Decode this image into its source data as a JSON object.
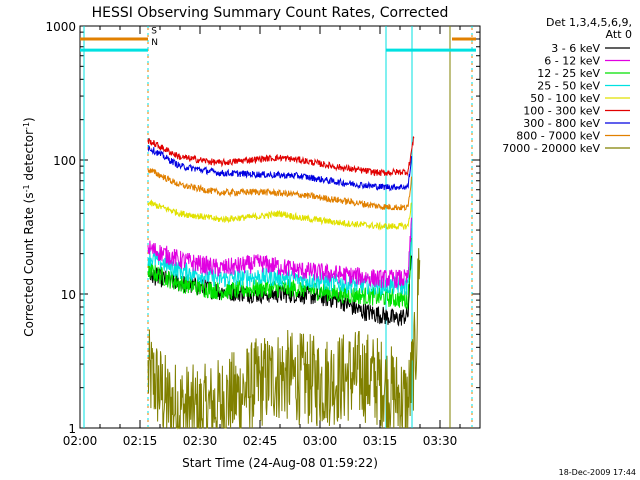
{
  "chart_data": {
    "type": "line",
    "title": "HESSI Observing Summary Count Rates, Corrected",
    "xlabel": "Start Time (24-Aug-08 01:59:22)",
    "ylabel_main": "Corrected Count Rate (s",
    "ylabel_sup1": "-1",
    "ylabel_mid": " detector",
    "ylabel_sup2": "-1",
    "ylabel_end": ")",
    "y_scale": "log",
    "ylim": [
      1,
      1000
    ],
    "xlim_minutes": [
      0,
      100
    ],
    "x_ticks": [
      {
        "m": 0,
        "label": "02:00"
      },
      {
        "m": 15,
        "label": "02:15"
      },
      {
        "m": 30,
        "label": "02:30"
      },
      {
        "m": 45,
        "label": "02:45"
      },
      {
        "m": 60,
        "label": "03:00"
      },
      {
        "m": 75,
        "label": "03:15"
      },
      {
        "m": 90,
        "label": "03:30"
      }
    ],
    "y_ticks": [
      {
        "v": 1,
        "label": "1"
      },
      {
        "v": 10,
        "label": "10"
      },
      {
        "v": 100,
        "label": "100"
      },
      {
        "v": 1000,
        "label": "1000"
      }
    ],
    "legend_header_1": "Det 1,3,4,5,6,9,",
    "legend_header_2": "Att 0",
    "legend_position": "right",
    "series": [
      {
        "name": "3 - 6 keV",
        "color": "#000000",
        "x": [
          17,
          25,
          35,
          45,
          55,
          65,
          70,
          75,
          79,
          82,
          83
        ],
        "y": [
          14,
          12,
          10.5,
          10,
          10,
          9,
          7.5,
          7,
          6.5,
          7,
          25
        ]
      },
      {
        "name": "6 - 12 keV",
        "color": "#e100e1",
        "x": [
          17,
          25,
          35,
          45,
          55,
          65,
          75,
          82,
          83
        ],
        "y": [
          22,
          18,
          15.5,
          17,
          15,
          14,
          13,
          13,
          40
        ]
      },
      {
        "name": "12 - 25 keV",
        "color": "#00e100",
        "x": [
          17,
          25,
          35,
          45,
          55,
          65,
          75,
          82,
          83
        ],
        "y": [
          15,
          12,
          10.5,
          11,
          11,
          10,
          9.5,
          9,
          30
        ]
      },
      {
        "name": "25 - 50 keV",
        "color": "#00e1e1",
        "x": [
          17,
          25,
          35,
          45,
          55,
          65,
          75,
          82,
          83
        ],
        "y": [
          19,
          15,
          13,
          13.5,
          13,
          12,
          11.5,
          11.5,
          35
        ]
      },
      {
        "name": "50 - 100 keV",
        "color": "#e1e100",
        "x": [
          17,
          25,
          35,
          45,
          50,
          55,
          65,
          75,
          82,
          83
        ],
        "y": [
          48,
          40,
          36,
          38,
          40,
          37,
          34,
          32,
          32,
          50
        ]
      },
      {
        "name": "100 - 300 keV",
        "color": "#e10000",
        "x": [
          17,
          25,
          35,
          45,
          50,
          55,
          65,
          75,
          82,
          83.5
        ],
        "y": [
          140,
          105,
          95,
          102,
          104,
          100,
          88,
          80,
          82,
          150
        ]
      },
      {
        "name": "300 - 800 keV",
        "color": "#0000e1",
        "x": [
          17,
          25,
          35,
          45,
          55,
          65,
          75,
          82,
          83
        ],
        "y": [
          125,
          90,
          80,
          78,
          76,
          68,
          63,
          63,
          110
        ]
      },
      {
        "name": "800 - 7000 keV",
        "color": "#e18000",
        "x": [
          17,
          25,
          35,
          45,
          55,
          65,
          75,
          82,
          83
        ],
        "y": [
          85,
          65,
          57,
          58,
          55,
          50,
          45,
          44,
          80
        ]
      },
      {
        "name": "7000 - 20000 keV",
        "color": "#808000",
        "x": [
          17,
          19,
          22,
          30,
          40,
          45,
          50,
          60,
          70,
          75,
          82,
          84,
          85
        ],
        "y": [
          2.5,
          2.2,
          1.5,
          1.3,
          1.8,
          2.2,
          2.5,
          2.2,
          2.5,
          2.2,
          1.5,
          4,
          30
        ]
      }
    ],
    "annotations": [
      {
        "text": "S",
        "color": "#e18000"
      },
      {
        "text": "N",
        "color": "#00e1e1"
      }
    ],
    "footer_timestamp": "18-Dec-2009 17:44"
  }
}
